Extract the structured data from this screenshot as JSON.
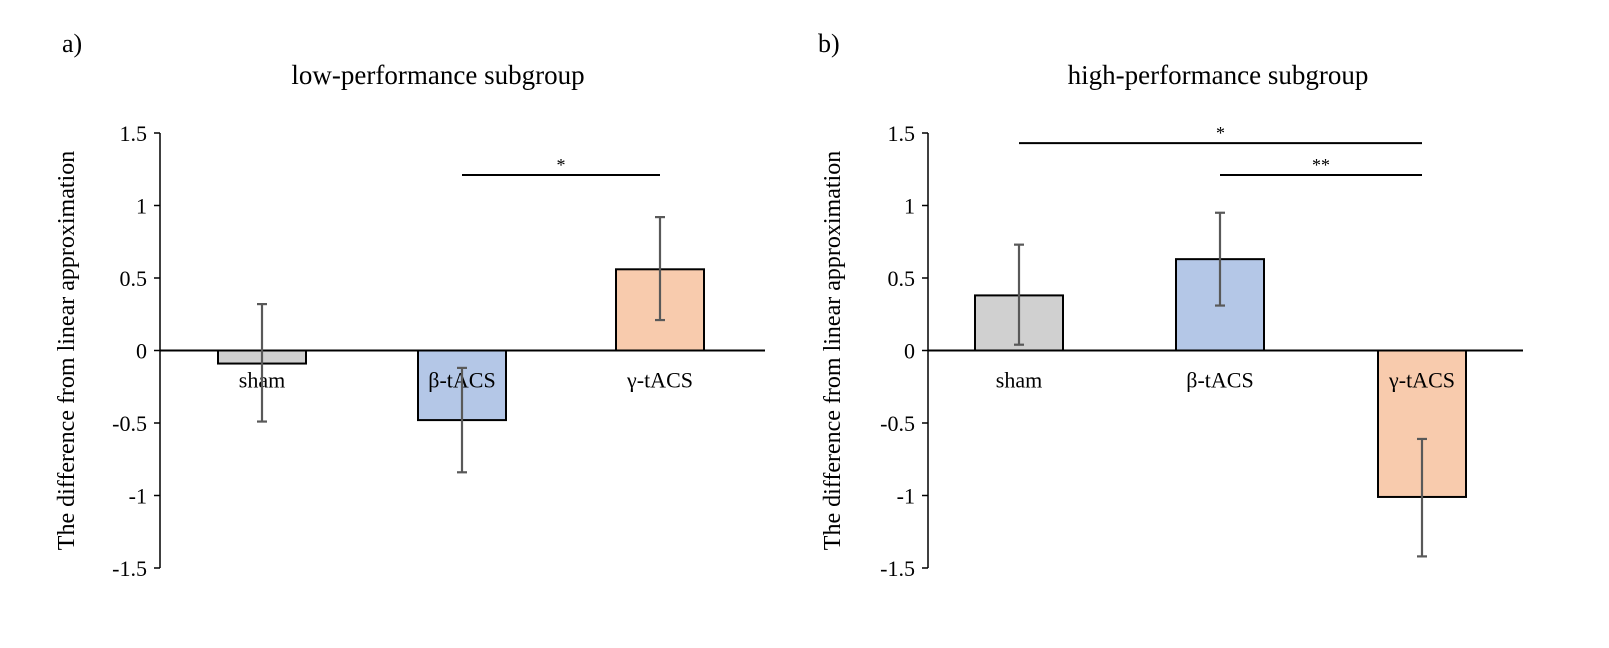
{
  "chart_data": [
    {
      "type": "bar",
      "panel_label": "a)",
      "title": "low-performance subgroup",
      "xlabel": "",
      "ylabel": "The difference from linear approximation",
      "ylim": [
        -1.5,
        1.5
      ],
      "yticks": [
        "1.5",
        "1",
        "0.5",
        "0",
        "-0.5",
        "-1",
        "-1.5"
      ],
      "ytick_values": [
        1.5,
        1,
        0.5,
        0,
        -0.5,
        -1,
        -1.5
      ],
      "grid": false,
      "categories": [
        "sham",
        "β-tACS",
        "γ-tACS"
      ],
      "values": [
        -0.09,
        -0.48,
        0.56
      ],
      "error_low": [
        -0.49,
        -0.84,
        0.21
      ],
      "error_high": [
        0.32,
        -0.12,
        0.92
      ],
      "colors": [
        "#d0d0d0",
        "#b4c7e7",
        "#f8cbad"
      ],
      "significance": [
        {
          "from": "β-tACS",
          "to": "γ-tACS",
          "label": "*",
          "level": 1.21
        }
      ]
    },
    {
      "type": "bar",
      "panel_label": "b)",
      "title": "high-performance subgroup",
      "xlabel": "",
      "ylabel": "The difference from linear approximation",
      "ylim": [
        -1.5,
        1.5
      ],
      "yticks": [
        "1.5",
        "1",
        "0.5",
        "0",
        "-0.5",
        "-1",
        "-1.5"
      ],
      "ytick_values": [
        1.5,
        1,
        0.5,
        0,
        -0.5,
        -1,
        -1.5
      ],
      "grid": false,
      "categories": [
        "sham",
        "β-tACS",
        "γ-tACS"
      ],
      "values": [
        0.38,
        0.63,
        -1.01
      ],
      "error_low": [
        0.04,
        0.31,
        -1.42
      ],
      "error_high": [
        0.73,
        0.95,
        -0.61
      ],
      "colors": [
        "#d0d0d0",
        "#b4c7e7",
        "#f8cbad"
      ],
      "significance": [
        {
          "from": "sham",
          "to": "γ-tACS",
          "label": "*",
          "level": 1.43
        },
        {
          "from": "β-tACS",
          "to": "γ-tACS",
          "label": "**",
          "level": 1.21
        }
      ]
    }
  ]
}
